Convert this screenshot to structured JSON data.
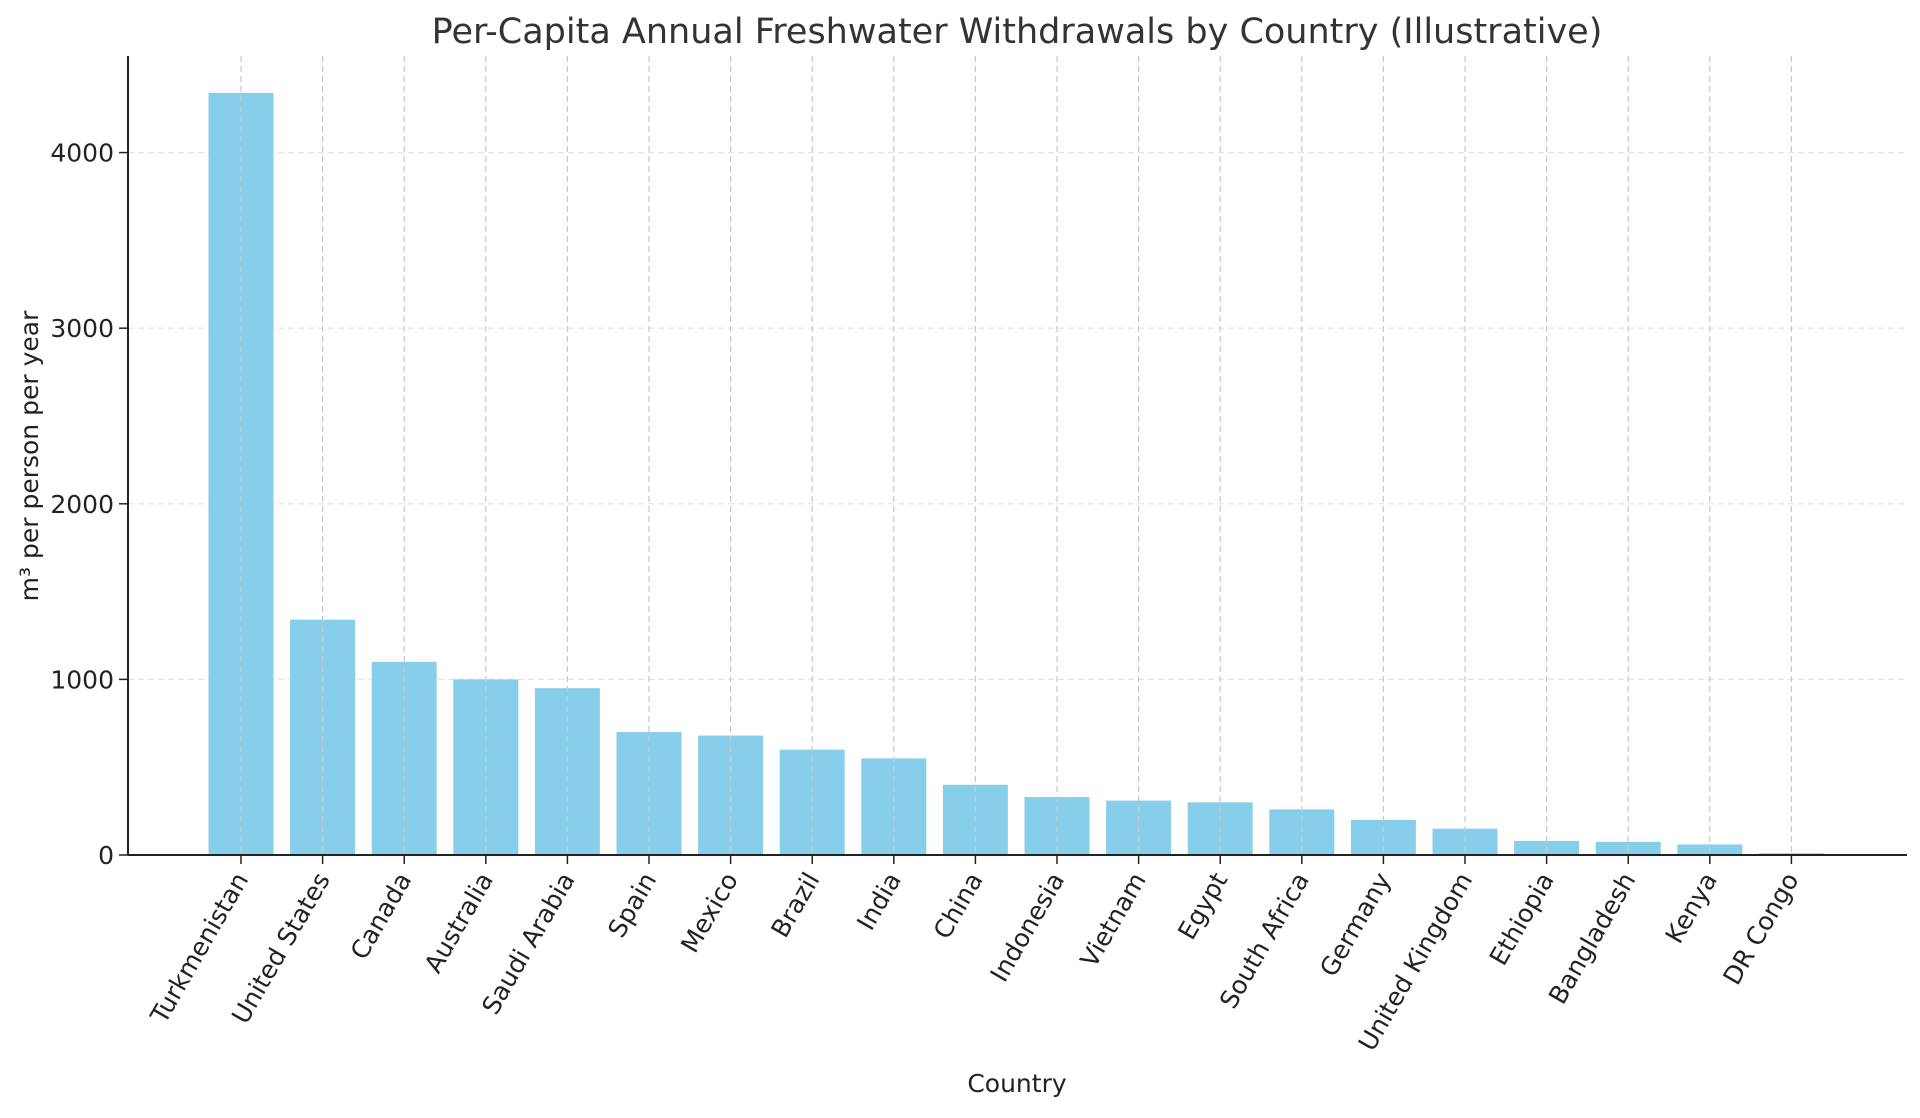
{
  "chart_data": {
    "type": "bar",
    "title": "Per-Capita Annual Freshwater Withdrawals by Country (Illustrative)",
    "xlabel": "Country",
    "ylabel": "m³ per person per year",
    "ylim": [
      0,
      4550
    ],
    "yticks": [
      0,
      1000,
      2000,
      3000,
      4000
    ],
    "grid": true,
    "bar_color": "#87ceeb",
    "categories": [
      "Turkmenistan",
      "United States",
      "Canada",
      "Australia",
      "Saudi Arabia",
      "Spain",
      "Mexico",
      "Brazil",
      "India",
      "China",
      "Indonesia",
      "Vietnam",
      "Egypt",
      "South Africa",
      "Germany",
      "United Kingdom",
      "Ethiopia",
      "Bangladesh",
      "Kenya",
      "DR Congo"
    ],
    "values": [
      4340,
      1340,
      1100,
      1000,
      950,
      700,
      680,
      600,
      550,
      400,
      330,
      310,
      300,
      260,
      200,
      150,
      80,
      75,
      60,
      10
    ]
  }
}
